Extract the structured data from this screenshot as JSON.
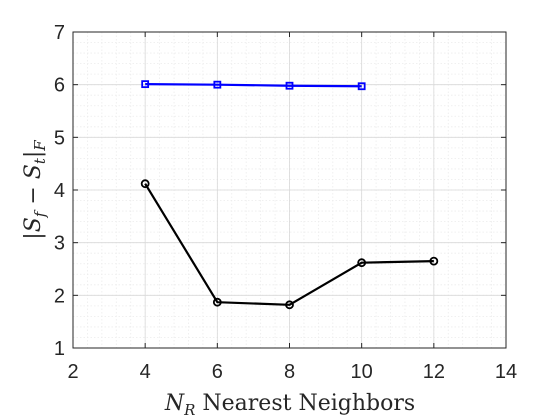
{
  "chart_data": {
    "type": "line",
    "title": "",
    "xlabel": {
      "math": "N",
      "sub": "R",
      "text": " Nearest Neighbors"
    },
    "ylabel": {
      "pre": "|S",
      "sub1": "f",
      "mid": " − S",
      "sub2": "t",
      "post": "|",
      "sub3": "F"
    },
    "xlim": [
      2,
      14
    ],
    "ylim": [
      1,
      7
    ],
    "xticks": [
      2,
      4,
      6,
      8,
      10,
      12,
      14
    ],
    "yticks": [
      1,
      2,
      3,
      4,
      5,
      6,
      7
    ],
    "grid": true,
    "minor_grid": true,
    "series": [
      {
        "marker": "square",
        "color": "#0000ff",
        "x": [
          4,
          6,
          8,
          10
        ],
        "y": [
          6.01,
          6.0,
          5.98,
          5.97
        ]
      },
      {
        "marker": "circle",
        "color": "#000000",
        "x": [
          4,
          6,
          8,
          10,
          12
        ],
        "y": [
          4.12,
          1.87,
          1.82,
          2.62,
          2.65
        ]
      }
    ]
  }
}
